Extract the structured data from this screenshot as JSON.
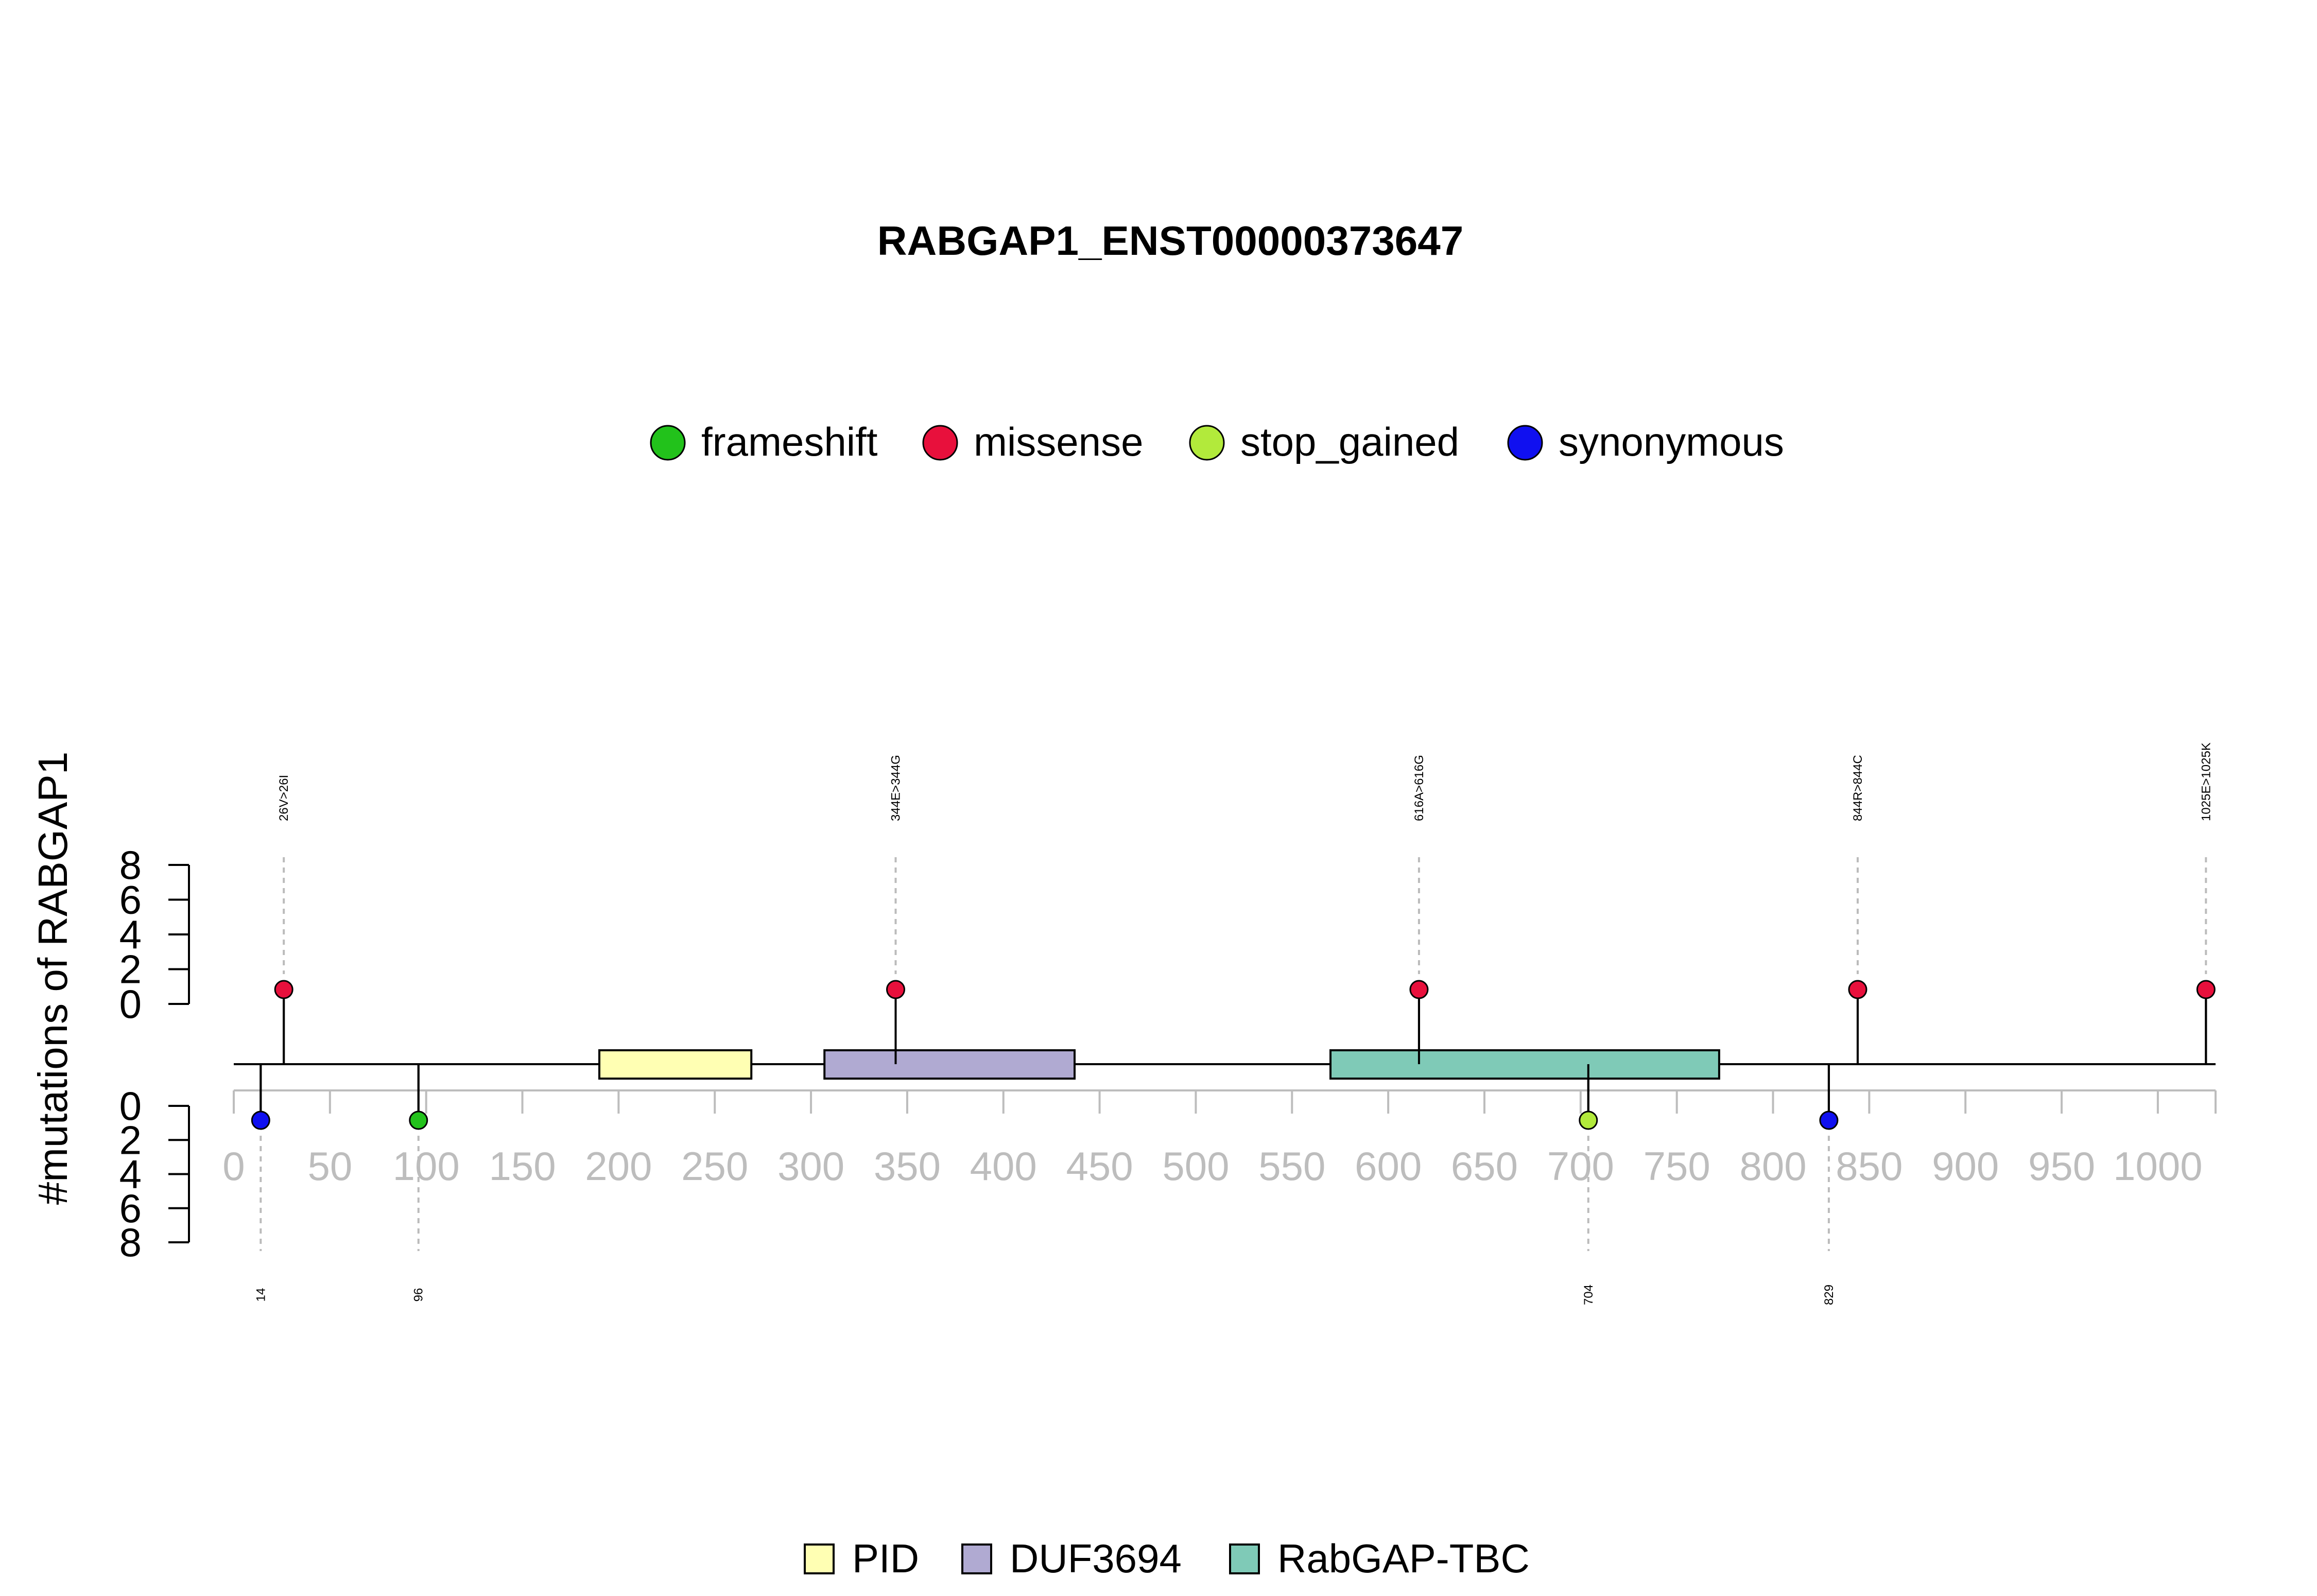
{
  "chart_data": {
    "type": "lollipop",
    "title": "RABGAP1_ENST00000373647",
    "ylabel": "#mutations of RABGAP1",
    "x_ticks": [
      0,
      50,
      100,
      150,
      200,
      250,
      300,
      350,
      400,
      450,
      500,
      550,
      600,
      650,
      700,
      750,
      800,
      850,
      900,
      950,
      1000
    ],
    "y_ticks": [
      0,
      2,
      4,
      6,
      8
    ],
    "xlim": [
      0,
      1030
    ],
    "ylim": [
      0,
      8
    ],
    "mutation_legend": [
      {
        "name": "frameshift",
        "color": "#22c21b"
      },
      {
        "name": "missense",
        "color": "#e8103c"
      },
      {
        "name": "stop_gained",
        "color": "#b2ea3b"
      },
      {
        "name": "synonymous",
        "color": "#1010f0"
      }
    ],
    "domains": [
      {
        "name": "PID",
        "start": 190,
        "end": 269,
        "color": "#ffffb3"
      },
      {
        "name": "DUF3694",
        "start": 307,
        "end": 437,
        "color": "#b0aad2"
      },
      {
        "name": "RabGAP-TBC",
        "start": 570,
        "end": 772,
        "color": "#7fcab7"
      }
    ],
    "mutations_top": [
      {
        "pos": 26,
        "label": "26V>26I",
        "type": "missense",
        "count": 1
      },
      {
        "pos": 344,
        "label": "344E>344G",
        "type": "missense",
        "count": 1
      },
      {
        "pos": 616,
        "label": "616A>616G",
        "type": "missense",
        "count": 1
      },
      {
        "pos": 844,
        "label": "844R>844C",
        "type": "missense",
        "count": 1
      },
      {
        "pos": 1025,
        "label": "1025E>1025K",
        "type": "missense",
        "count": 1
      }
    ],
    "mutations_bottom": [
      {
        "pos": 14,
        "label": "14",
        "type": "synonymous",
        "count": 1
      },
      {
        "pos": 96,
        "label": "96",
        "type": "frameshift",
        "count": 1
      },
      {
        "pos": 704,
        "label": "704",
        "type": "stop_gained",
        "count": 1
      },
      {
        "pos": 829,
        "label": "829",
        "type": "synonymous",
        "count": 1
      }
    ]
  }
}
